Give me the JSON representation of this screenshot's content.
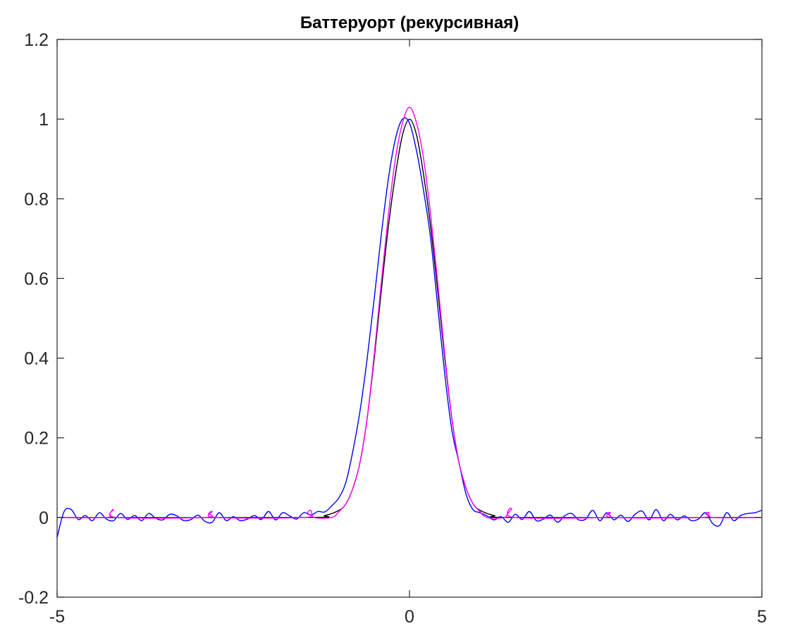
{
  "chart_data": {
    "type": "line",
    "title": "Баттеруорт (рекурсивная)",
    "xlabel": "",
    "ylabel": "",
    "xlim": [
      -5,
      5
    ],
    "ylim": [
      -0.2,
      1.2
    ],
    "xticks": [
      -5,
      0,
      5
    ],
    "xtick_labels": [
      "-5",
      "0",
      "5"
    ],
    "yticks": [
      -0.2,
      0,
      0.2,
      0.4,
      0.6,
      0.8,
      1.0,
      1.2
    ],
    "ytick_labels": [
      "-0.2",
      "0",
      "0.2",
      "0.4",
      "0.6",
      "0.8",
      "1",
      "1.2"
    ],
    "grid": false,
    "legend": "none",
    "series": [
      {
        "color": "#000000",
        "style": "smooth",
        "x": [
          -5.0,
          -1.5,
          -1.2,
          -1.0,
          -0.9,
          -0.8,
          -0.7,
          -0.6,
          -0.5,
          -0.4,
          -0.3,
          -0.2,
          -0.1,
          0.0,
          0.1,
          0.2,
          0.3,
          0.4,
          0.5,
          0.6,
          0.7,
          0.8,
          0.9,
          1.0,
          1.2,
          1.5,
          5.0
        ],
        "values": [
          0.0,
          0.0,
          0.005,
          0.018,
          0.035,
          0.075,
          0.14,
          0.25,
          0.4,
          0.57,
          0.73,
          0.86,
          0.96,
          1.0,
          0.96,
          0.86,
          0.73,
          0.57,
          0.4,
          0.25,
          0.14,
          0.075,
          0.035,
          0.018,
          0.005,
          0.0,
          0.0
        ]
      },
      {
        "color": "#0000ff",
        "style": "smooth",
        "x": [
          -5.0,
          -4.9,
          -4.8,
          -4.7,
          -4.6,
          -4.5,
          -4.4,
          -4.3,
          -4.2,
          -4.1,
          -4.0,
          -3.9,
          -3.8,
          -3.7,
          -3.6,
          -3.5,
          -3.4,
          -3.3,
          -3.2,
          -3.1,
          -3.0,
          -2.9,
          -2.8,
          -2.7,
          -2.6,
          -2.5,
          -2.4,
          -2.3,
          -2.2,
          -2.1,
          -2.0,
          -1.9,
          -1.8,
          -1.7,
          -1.6,
          -1.5,
          -1.4,
          -1.3,
          -1.2,
          -1.1,
          -1.0,
          -0.9,
          -0.8,
          -0.7,
          -0.6,
          -0.5,
          -0.4,
          -0.3,
          -0.2,
          -0.1,
          0.0,
          0.1,
          0.2,
          0.3,
          0.4,
          0.5,
          0.6,
          0.7,
          0.8,
          0.9,
          1.0,
          1.1,
          1.2,
          1.3,
          1.4,
          1.5,
          1.6,
          1.7,
          1.8,
          1.9,
          2.0,
          2.1,
          2.2,
          2.3,
          2.4,
          2.5,
          2.6,
          2.7,
          2.8,
          2.9,
          3.0,
          3.1,
          3.2,
          3.3,
          3.4,
          3.5,
          3.6,
          3.7,
          3.8,
          3.9,
          4.0,
          4.1,
          4.2,
          4.3,
          4.4,
          4.5,
          4.6,
          4.7,
          4.8,
          4.9,
          5.0
        ],
        "values": [
          -0.05,
          0.015,
          0.02,
          -0.005,
          0.005,
          -0.008,
          0.012,
          -0.004,
          -0.008,
          0.01,
          -0.005,
          0.005,
          -0.008,
          0.01,
          -0.002,
          -0.006,
          0.008,
          0.004,
          -0.008,
          -0.005,
          0.006,
          -0.01,
          -0.012,
          0.012,
          -0.008,
          0.002,
          -0.008,
          -0.004,
          0.005,
          -0.005,
          0.015,
          -0.006,
          0.012,
          0.004,
          -0.004,
          0.012,
          0.006,
          0.015,
          0.014,
          0.03,
          0.05,
          0.09,
          0.17,
          0.27,
          0.4,
          0.55,
          0.71,
          0.85,
          0.95,
          1.0,
          0.99,
          0.92,
          0.82,
          0.7,
          0.53,
          0.36,
          0.22,
          0.14,
          0.06,
          0.02,
          0.012,
          0.004,
          -0.006,
          0.002,
          -0.012,
          0.008,
          -0.005,
          0.015,
          -0.008,
          -0.004,
          0.006,
          -0.012,
          0.004,
          0.01,
          -0.006,
          -0.004,
          0.018,
          -0.008,
          0.012,
          -0.006,
          0.006,
          -0.01,
          0.008,
          0.016,
          -0.006,
          0.02,
          -0.008,
          0.008,
          -0.006,
          0.004,
          -0.008,
          -0.004,
          0.012,
          -0.015,
          -0.02,
          0.012,
          -0.008,
          0.005,
          0.01,
          0.012,
          0.018
        ]
      },
      {
        "color": "#ff00ff",
        "style": "smooth",
        "x": [
          -5.0,
          -4.3,
          -4.25,
          -4.2,
          -4.15,
          -2.9,
          -2.85,
          -2.8,
          -2.75,
          -1.5,
          -1.45,
          -1.4,
          -1.35,
          -1.1,
          -1.0,
          -0.9,
          -0.8,
          -0.7,
          -0.6,
          -0.5,
          -0.4,
          -0.3,
          -0.2,
          -0.1,
          0.0,
          0.1,
          0.2,
          0.3,
          0.4,
          0.5,
          0.6,
          0.7,
          0.8,
          0.9,
          1.0,
          1.1,
          1.35,
          1.4,
          1.45,
          1.5,
          2.75,
          2.8,
          2.85,
          2.9,
          4.15,
          4.2,
          4.25,
          4.3,
          5.0
        ],
        "values": [
          0.0,
          0.0,
          0.01,
          0.02,
          0.0,
          0.0,
          0.01,
          0.015,
          0.0,
          0.0,
          0.012,
          0.018,
          0.0,
          0.0,
          0.015,
          0.035,
          0.075,
          0.14,
          0.25,
          0.41,
          0.59,
          0.76,
          0.9,
          0.99,
          1.03,
          0.99,
          0.9,
          0.76,
          0.59,
          0.41,
          0.25,
          0.14,
          0.075,
          0.035,
          0.015,
          0.0,
          0.0,
          0.018,
          0.022,
          0.0,
          0.0,
          0.01,
          0.012,
          0.0,
          0.0,
          0.01,
          0.012,
          0.0,
          0.0
        ]
      }
    ]
  }
}
